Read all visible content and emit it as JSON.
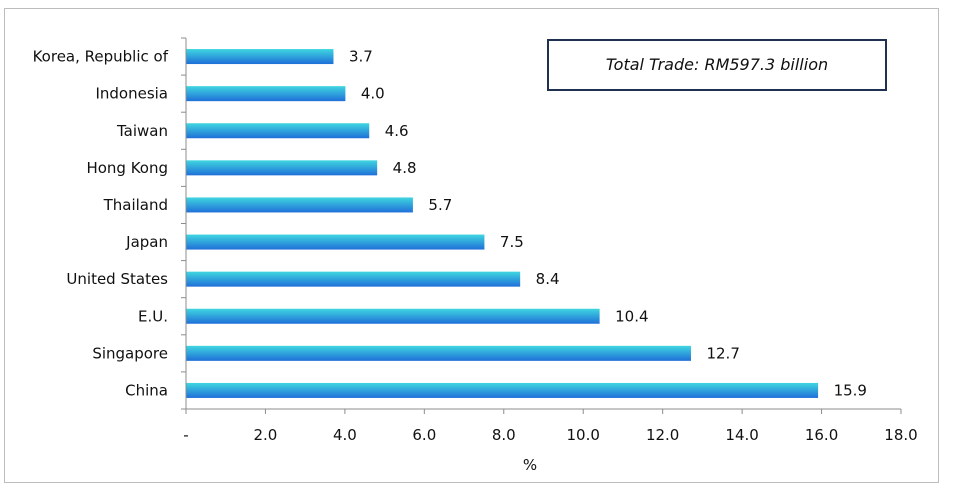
{
  "chart_data": {
    "type": "bar",
    "orientation": "horizontal",
    "categories": [
      "China",
      "Singapore",
      "E.U.",
      "United States",
      "Japan",
      "Thailand",
      "Hong Kong",
      "Taiwan",
      "Indonesia",
      "Korea, Republic of"
    ],
    "values": [
      15.9,
      12.7,
      10.4,
      8.4,
      7.5,
      5.7,
      4.8,
      4.6,
      4.0,
      3.7
    ],
    "value_labels": [
      "15.9",
      "12.7",
      "10.4",
      "8.4",
      "7.5",
      "5.7",
      "4.8",
      "4.6",
      "4.0",
      "3.7"
    ],
    "xlabel": "%",
    "ylabel": "",
    "xlim": [
      0,
      18
    ],
    "x_ticks": [
      0,
      2,
      4,
      6,
      8,
      10,
      12,
      14,
      16,
      18
    ],
    "x_tick_labels": [
      "-",
      "2.0",
      "4.0",
      "6.0",
      "8.0",
      "10.0",
      "12.0",
      "14.0",
      "16.0",
      "18.0"
    ],
    "grid": false,
    "legend": "none",
    "annotation": "Total Trade: RM597.3 billion",
    "colors": {
      "bar_top": "#3fd6e0",
      "bar_bottom": "#1f6fd8",
      "axis": "#8c8c8c",
      "annotation_border": "#1f3050"
    }
  }
}
